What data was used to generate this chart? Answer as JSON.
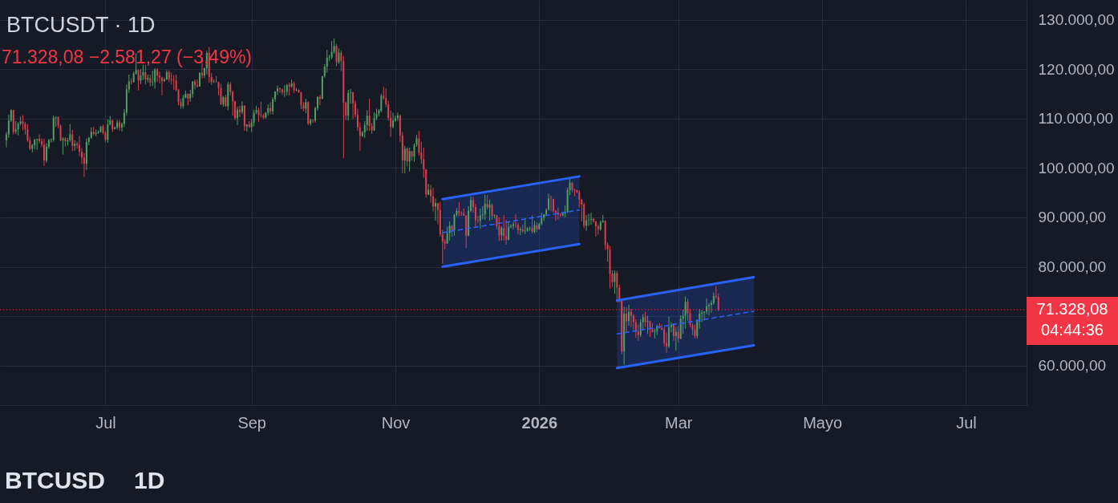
{
  "chart_data": {
    "type": "candlestick",
    "title": "BTCUSDT · 1D",
    "subtitle": "71.328,08 −2.581,27 (−3,49%)",
    "x": [
      "2025-05-20",
      "2025-05-21",
      "2025-05-22",
      "2025-05-23",
      "2025-05-24",
      "2025-05-25",
      "2025-05-26",
      "2025-05-27",
      "2025-05-28",
      "2025-05-29",
      "2025-05-30",
      "2025-05-31",
      "2025-06-01",
      "2025-06-02",
      "2025-06-03",
      "2025-06-04",
      "2025-06-05",
      "2025-06-06",
      "2025-06-07",
      "2025-06-08",
      "2025-06-09",
      "2025-06-10",
      "2025-06-11",
      "2025-06-12",
      "2025-06-13",
      "2025-06-14",
      "2025-06-15",
      "2025-06-16",
      "2025-06-17",
      "2025-06-18",
      "2025-06-19",
      "2025-06-20",
      "2025-06-21",
      "2025-06-22",
      "2025-06-23",
      "2025-06-24",
      "2025-06-25",
      "2025-06-26",
      "2025-06-27",
      "2025-06-28",
      "2025-06-29",
      "2025-06-30",
      "2025-07-01",
      "2025-07-02",
      "2025-07-03",
      "2025-07-04",
      "2025-07-05",
      "2025-07-06",
      "2025-07-07",
      "2025-07-08",
      "2025-07-09",
      "2025-07-10",
      "2025-07-11",
      "2025-07-12",
      "2025-07-13",
      "2025-07-14",
      "2025-07-15",
      "2025-07-16",
      "2025-07-17",
      "2025-07-18",
      "2025-07-19",
      "2025-07-20",
      "2025-07-21",
      "2025-07-22",
      "2025-07-23",
      "2025-07-24",
      "2025-07-25",
      "2025-07-26",
      "2025-07-27",
      "2025-07-28",
      "2025-07-29",
      "2025-07-30",
      "2025-07-31",
      "2025-08-01",
      "2025-08-02",
      "2025-08-03",
      "2025-08-04",
      "2025-08-05",
      "2025-08-06",
      "2025-08-07",
      "2025-08-08",
      "2025-08-09",
      "2025-08-10",
      "2025-08-11",
      "2025-08-12",
      "2025-08-13",
      "2025-08-14",
      "2025-08-15",
      "2025-08-16",
      "2025-08-17",
      "2025-08-18",
      "2025-08-19",
      "2025-08-20",
      "2025-08-21",
      "2025-08-22",
      "2025-08-23",
      "2025-08-24",
      "2025-08-25",
      "2025-08-26",
      "2025-08-27",
      "2025-08-28",
      "2025-08-29",
      "2025-08-30",
      "2025-08-31",
      "2025-09-01",
      "2025-09-02",
      "2025-09-03",
      "2025-09-04",
      "2025-09-05",
      "2025-09-06",
      "2025-09-07",
      "2025-09-08",
      "2025-09-09",
      "2025-09-10",
      "2025-09-11",
      "2025-09-12",
      "2025-09-13",
      "2025-09-14",
      "2025-09-15",
      "2025-09-16",
      "2025-09-17",
      "2025-09-18",
      "2025-09-19",
      "2025-09-20",
      "2025-09-21",
      "2025-09-22",
      "2025-09-23",
      "2025-09-24",
      "2025-09-25",
      "2025-09-26",
      "2025-09-27",
      "2025-09-28",
      "2025-09-29",
      "2025-09-30",
      "2025-10-01",
      "2025-10-02",
      "2025-10-03",
      "2025-10-04",
      "2025-10-05",
      "2025-10-06",
      "2025-10-07",
      "2025-10-08",
      "2025-10-09",
      "2025-10-10",
      "2025-10-11",
      "2025-10-12",
      "2025-10-13",
      "2025-10-14",
      "2025-10-15",
      "2025-10-16",
      "2025-10-17",
      "2025-10-18",
      "2025-10-19",
      "2025-10-20",
      "2025-10-21",
      "2025-10-22",
      "2025-10-23",
      "2025-10-24",
      "2025-10-25",
      "2025-10-26",
      "2025-10-27",
      "2025-10-28",
      "2025-10-29",
      "2025-10-30",
      "2025-10-31",
      "2025-11-01",
      "2025-11-02",
      "2025-11-03",
      "2025-11-04",
      "2025-11-05",
      "2025-11-06",
      "2025-11-07",
      "2025-11-08",
      "2025-11-09",
      "2025-11-10",
      "2025-11-11",
      "2025-11-12",
      "2025-11-13",
      "2025-11-14",
      "2025-11-15",
      "2025-11-16",
      "2025-11-17",
      "2025-11-18",
      "2025-11-19",
      "2025-11-20",
      "2025-11-21",
      "2025-11-22",
      "2025-11-23",
      "2025-11-24",
      "2025-11-25",
      "2025-11-26",
      "2025-11-27",
      "2025-11-28",
      "2025-11-29",
      "2025-11-30",
      "2025-12-01",
      "2025-12-02",
      "2025-12-03",
      "2025-12-04",
      "2025-12-05",
      "2025-12-06",
      "2025-12-07",
      "2025-12-08",
      "2025-12-09",
      "2025-12-10",
      "2025-12-11",
      "2025-12-12",
      "2025-12-13",
      "2025-12-14",
      "2025-12-15",
      "2025-12-16",
      "2025-12-17",
      "2025-12-18",
      "2025-12-19",
      "2025-12-20",
      "2025-12-21",
      "2025-12-22",
      "2025-12-23",
      "2025-12-24",
      "2025-12-25",
      "2025-12-26",
      "2025-12-27",
      "2025-12-28",
      "2025-12-29",
      "2025-12-30",
      "2025-12-31",
      "2026-01-01",
      "2026-01-02",
      "2026-01-03",
      "2026-01-04",
      "2026-01-05",
      "2026-01-06",
      "2026-01-07",
      "2026-01-08",
      "2026-01-09",
      "2026-01-10",
      "2026-01-11",
      "2026-01-12",
      "2026-01-13",
      "2026-01-14",
      "2026-01-15",
      "2026-01-16",
      "2026-01-17",
      "2026-01-18",
      "2026-01-19",
      "2026-01-20",
      "2026-01-21",
      "2026-01-22",
      "2026-01-23",
      "2026-01-24",
      "2026-01-25",
      "2026-01-26",
      "2026-01-27",
      "2026-01-28",
      "2026-01-29",
      "2026-01-30",
      "2026-01-31",
      "2026-02-01",
      "2026-02-02",
      "2026-02-03",
      "2026-02-04",
      "2026-02-05",
      "2026-02-06",
      "2026-02-07",
      "2026-02-08",
      "2026-02-09",
      "2026-02-10",
      "2026-02-11",
      "2026-02-12",
      "2026-02-13",
      "2026-02-14",
      "2026-02-15",
      "2026-02-16",
      "2026-02-17",
      "2026-02-18",
      "2026-02-19",
      "2026-02-20",
      "2026-02-21",
      "2026-02-22",
      "2026-02-23",
      "2026-02-24",
      "2026-02-25",
      "2026-02-26",
      "2026-02-27",
      "2026-02-28",
      "2026-03-01",
      "2026-03-02",
      "2026-03-03",
      "2026-03-04",
      "2026-03-05",
      "2026-03-06",
      "2026-03-07",
      "2026-03-08",
      "2026-03-09",
      "2026-03-10",
      "2026-03-11",
      "2026-03-12",
      "2026-03-13",
      "2026-03-14",
      "2026-03-15",
      "2026-03-16",
      "2026-03-17",
      "2026-03-18"
    ],
    "ohlc": [
      [
        105600,
        107300,
        104200,
        106800
      ],
      [
        106800,
        110800,
        106100,
        109600
      ],
      [
        109600,
        111900,
        109300,
        111700
      ],
      [
        111700,
        111800,
        106800,
        107300
      ],
      [
        107300,
        109500,
        106900,
        107800
      ],
      [
        107800,
        109300,
        106600,
        109000
      ],
      [
        109000,
        110400,
        108600,
        109400
      ],
      [
        109400,
        110700,
        107600,
        108900
      ],
      [
        108900,
        109300,
        106800,
        107800
      ],
      [
        107800,
        108900,
        105300,
        105600
      ],
      [
        105600,
        106300,
        103600,
        103900
      ],
      [
        103900,
        104900,
        103100,
        104600
      ],
      [
        104600,
        105900,
        103800,
        105700
      ],
      [
        105700,
        105900,
        103700,
        105900
      ],
      [
        105900,
        106800,
        105000,
        105400
      ],
      [
        105400,
        106000,
        104200,
        104700
      ],
      [
        104700,
        105900,
        100400,
        101500
      ],
      [
        101500,
        105000,
        101100,
        104300
      ],
      [
        104300,
        105900,
        103900,
        105600
      ],
      [
        105600,
        106000,
        105100,
        105700
      ],
      [
        105700,
        110600,
        105300,
        110200
      ],
      [
        110200,
        110400,
        108300,
        110300
      ],
      [
        110300,
        110400,
        108000,
        108600
      ],
      [
        108600,
        108800,
        105400,
        105600
      ],
      [
        105600,
        106200,
        102700,
        106000
      ],
      [
        106000,
        106200,
        104300,
        105400
      ],
      [
        105400,
        106100,
        104500,
        105600
      ],
      [
        105600,
        108900,
        105300,
        106800
      ],
      [
        106800,
        107700,
        103400,
        104500
      ],
      [
        104500,
        105600,
        103500,
        104900
      ],
      [
        104900,
        105300,
        103900,
        104600
      ],
      [
        104600,
        106500,
        102400,
        103300
      ],
      [
        103300,
        104000,
        100800,
        102100
      ],
      [
        102100,
        103000,
        98200,
        100900
      ],
      [
        100900,
        106000,
        99600,
        105300
      ],
      [
        105300,
        106300,
        104600,
        106100
      ],
      [
        106100,
        108200,
        105900,
        107300
      ],
      [
        107300,
        108300,
        106600,
        106900
      ],
      [
        106900,
        107800,
        106400,
        107100
      ],
      [
        107100,
        107600,
        106900,
        107300
      ],
      [
        107300,
        108500,
        107200,
        108400
      ],
      [
        108400,
        108800,
        106800,
        107100
      ],
      [
        107100,
        107500,
        105300,
        105700
      ],
      [
        105700,
        109800,
        105100,
        108800
      ],
      [
        108800,
        110500,
        108600,
        109600
      ],
      [
        109600,
        109800,
        107300,
        107900
      ],
      [
        107900,
        108400,
        107800,
        108200
      ],
      [
        108200,
        109700,
        107800,
        109200
      ],
      [
        109200,
        109700,
        107500,
        108200
      ],
      [
        108200,
        109200,
        107400,
        108900
      ],
      [
        108900,
        111900,
        108300,
        111200
      ],
      [
        111200,
        116900,
        110600,
        115900
      ],
      [
        115900,
        118900,
        115200,
        117500
      ],
      [
        117500,
        118200,
        116900,
        117400
      ],
      [
        117400,
        119500,
        117300,
        119100
      ],
      [
        119100,
        123200,
        118900,
        119800
      ],
      [
        119800,
        119900,
        115700,
        117700
      ],
      [
        117700,
        120000,
        117000,
        118700
      ],
      [
        118700,
        120900,
        117800,
        119400
      ],
      [
        119400,
        120900,
        116900,
        117900
      ],
      [
        117900,
        118900,
        117300,
        118200
      ],
      [
        118200,
        118900,
        116500,
        117300
      ],
      [
        117300,
        119700,
        116600,
        117400
      ],
      [
        117400,
        120200,
        116100,
        119900
      ],
      [
        119900,
        120200,
        117400,
        118700
      ],
      [
        118700,
        119500,
        117100,
        118300
      ],
      [
        118300,
        118500,
        114700,
        117600
      ],
      [
        117600,
        118300,
        117400,
        117900
      ],
      [
        117900,
        119800,
        117800,
        119400
      ],
      [
        119400,
        119800,
        117400,
        118000
      ],
      [
        118000,
        119300,
        116900,
        117800
      ],
      [
        117800,
        118800,
        115800,
        117700
      ],
      [
        117700,
        118900,
        115500,
        115800
      ],
      [
        115800,
        116000,
        112700,
        113300
      ],
      [
        113300,
        114000,
        112000,
        112500
      ],
      [
        112500,
        114800,
        112000,
        114200
      ],
      [
        114200,
        115700,
        114100,
        115000
      ],
      [
        115000,
        115100,
        112700,
        114100
      ],
      [
        114100,
        115800,
        113400,
        115000
      ],
      [
        115000,
        117600,
        114300,
        117500
      ],
      [
        117500,
        117900,
        115900,
        116700
      ],
      [
        116700,
        117900,
        116300,
        116500
      ],
      [
        116500,
        119300,
        116500,
        119300
      ],
      [
        119300,
        122300,
        118100,
        118700
      ],
      [
        118700,
        120300,
        118200,
        120200
      ],
      [
        120200,
        123700,
        118900,
        123300
      ],
      [
        123300,
        124500,
        117200,
        118400
      ],
      [
        118400,
        119200,
        116800,
        117400
      ],
      [
        117400,
        117900,
        117200,
        117500
      ],
      [
        117500,
        118600,
        117300,
        117400
      ],
      [
        117400,
        117500,
        114700,
        116200
      ],
      [
        116200,
        117000,
        112700,
        112900
      ],
      [
        112900,
        114600,
        112400,
        114300
      ],
      [
        114300,
        114800,
        112400,
        112500
      ],
      [
        112500,
        117400,
        111700,
        116900
      ],
      [
        116900,
        117400,
        114700,
        115400
      ],
      [
        115400,
        115700,
        110600,
        113500
      ],
      [
        113500,
        113600,
        109700,
        110100
      ],
      [
        110100,
        112400,
        108700,
        111800
      ],
      [
        111800,
        112600,
        110300,
        111300
      ],
      [
        111300,
        113500,
        110900,
        112600
      ],
      [
        112600,
        112700,
        107500,
        108400
      ],
      [
        108400,
        108900,
        107400,
        108800
      ],
      [
        108800,
        109500,
        108100,
        108300
      ],
      [
        108300,
        109900,
        107300,
        109200
      ],
      [
        109200,
        111800,
        108400,
        111200
      ],
      [
        111200,
        112600,
        110900,
        111700
      ],
      [
        111700,
        112200,
        109300,
        110700
      ],
      [
        110700,
        113400,
        110200,
        110600
      ],
      [
        110600,
        111000,
        109900,
        110200
      ],
      [
        110200,
        111300,
        110000,
        111200
      ],
      [
        111200,
        112900,
        110600,
        112100
      ],
      [
        112100,
        113300,
        110900,
        111500
      ],
      [
        111500,
        114300,
        110800,
        113900
      ],
      [
        113900,
        115500,
        113400,
        115500
      ],
      [
        115500,
        116700,
        114800,
        116100
      ],
      [
        116100,
        116300,
        115200,
        115900
      ],
      [
        115900,
        116100,
        114800,
        115300
      ],
      [
        115300,
        116800,
        114400,
        115400
      ],
      [
        115400,
        117000,
        114700,
        116800
      ],
      [
        116800,
        117300,
        114700,
        116500
      ],
      [
        116500,
        117900,
        116200,
        117100
      ],
      [
        117100,
        117500,
        115200,
        115700
      ],
      [
        115700,
        116200,
        115500,
        115800
      ],
      [
        115800,
        115900,
        115200,
        115300
      ],
      [
        115300,
        115400,
        111900,
        112700
      ],
      [
        112700,
        113300,
        111500,
        112000
      ],
      [
        112000,
        114000,
        111100,
        113300
      ],
      [
        113300,
        113500,
        108700,
        109000
      ],
      [
        109000,
        110000,
        108600,
        109700
      ],
      [
        109700,
        109800,
        109100,
        109600
      ],
      [
        109600,
        112400,
        109200,
        112100
      ],
      [
        112100,
        114500,
        111600,
        114400
      ],
      [
        114400,
        114800,
        112700,
        114000
      ],
      [
        114000,
        118600,
        113900,
        118600
      ],
      [
        118600,
        121000,
        118300,
        120500
      ],
      [
        120500,
        123900,
        119300,
        122300
      ],
      [
        122300,
        122900,
        121600,
        122400
      ],
      [
        122400,
        125700,
        122000,
        123500
      ],
      [
        123500,
        126200,
        123100,
        124700
      ],
      [
        124700,
        125100,
        120600,
        121400
      ],
      [
        121400,
        124200,
        121100,
        123300
      ],
      [
        123300,
        123800,
        119600,
        121700
      ],
      [
        121700,
        122600,
        102000,
        113200
      ],
      [
        113200,
        113400,
        109700,
        110600
      ],
      [
        110600,
        115800,
        109600,
        115200
      ],
      [
        115200,
        116000,
        113000,
        115300
      ],
      [
        115300,
        115400,
        109900,
        113100
      ],
      [
        113100,
        113600,
        110200,
        110800
      ],
      [
        110800,
        112000,
        107500,
        108200
      ],
      [
        108200,
        109200,
        103500,
        106500
      ],
      [
        106500,
        107500,
        106300,
        107200
      ],
      [
        107200,
        109500,
        106100,
        108700
      ],
      [
        108700,
        111700,
        107500,
        110600
      ],
      [
        110600,
        114000,
        107500,
        108500
      ],
      [
        108500,
        109100,
        106900,
        107600
      ],
      [
        107600,
        111300,
        107500,
        110100
      ],
      [
        110100,
        112000,
        109700,
        111000
      ],
      [
        111000,
        111900,
        110500,
        111600
      ],
      [
        111600,
        115000,
        111300,
        114600
      ],
      [
        114600,
        116400,
        113800,
        114100
      ],
      [
        114100,
        116100,
        112300,
        112900
      ],
      [
        112900,
        113600,
        109600,
        110100
      ],
      [
        110100,
        111600,
        106300,
        108300
      ],
      [
        108300,
        111200,
        108000,
        109600
      ],
      [
        109600,
        110600,
        109400,
        110100
      ],
      [
        110100,
        111200,
        109500,
        110600
      ],
      [
        110600,
        110800,
        105300,
        106600
      ],
      [
        106600,
        107300,
        98900,
        101500
      ],
      [
        101500,
        104500,
        98900,
        103900
      ],
      [
        103900,
        104200,
        100300,
        101300
      ],
      [
        101300,
        104100,
        99300,
        103400
      ],
      [
        103400,
        103400,
        101500,
        102300
      ],
      [
        102300,
        105000,
        101300,
        104700
      ],
      [
        104700,
        106700,
        104300,
        106000
      ],
      [
        106000,
        107500,
        102500,
        103100
      ],
      [
        103100,
        105300,
        100800,
        101700
      ],
      [
        101700,
        104100,
        98000,
        99700
      ],
      [
        99700,
        99800,
        94000,
        94600
      ],
      [
        94600,
        96800,
        94600,
        95600
      ],
      [
        95600,
        96600,
        93000,
        94300
      ],
      [
        94300,
        96000,
        91200,
        92200
      ],
      [
        92200,
        93800,
        89300,
        92900
      ],
      [
        92900,
        92900,
        88600,
        91500
      ],
      [
        91500,
        93200,
        86100,
        86600
      ],
      [
        86600,
        87500,
        80600,
        85100
      ],
      [
        85100,
        85600,
        83500,
        84700
      ],
      [
        84700,
        88100,
        84700,
        86800
      ],
      [
        86800,
        89200,
        85300,
        88300
      ],
      [
        88300,
        88500,
        86100,
        87400
      ],
      [
        87400,
        90700,
        86300,
        90500
      ],
      [
        90500,
        91900,
        90100,
        91300
      ],
      [
        91300,
        93100,
        90200,
        90900
      ],
      [
        90900,
        91200,
        90300,
        90800
      ],
      [
        90800,
        91800,
        90300,
        90400
      ],
      [
        90400,
        90400,
        83800,
        86300
      ],
      [
        86300,
        92300,
        86200,
        91300
      ],
      [
        91300,
        94200,
        91100,
        93500
      ],
      [
        93500,
        94100,
        91000,
        92100
      ],
      [
        92100,
        92700,
        88100,
        89400
      ],
      [
        89400,
        90300,
        88900,
        89300
      ],
      [
        89300,
        91800,
        87700,
        90400
      ],
      [
        90400,
        92300,
        89600,
        90600
      ],
      [
        90600,
        94600,
        89500,
        92700
      ],
      [
        92700,
        94500,
        91600,
        92000
      ],
      [
        92000,
        93600,
        89300,
        92500
      ],
      [
        92500,
        92800,
        89500,
        90300
      ],
      [
        90300,
        90600,
        89800,
        90400
      ],
      [
        90400,
        90500,
        87600,
        88200
      ],
      [
        88200,
        90000,
        85200,
        86400
      ],
      [
        86400,
        88200,
        85300,
        87800
      ],
      [
        87800,
        90400,
        85300,
        86200
      ],
      [
        86200,
        89500,
        84500,
        85500
      ],
      [
        85500,
        89000,
        85300,
        88100
      ],
      [
        88100,
        88600,
        87800,
        88300
      ],
      [
        88300,
        89100,
        87600,
        88600
      ],
      [
        88600,
        90600,
        87900,
        88500
      ],
      [
        88500,
        88900,
        86600,
        87400
      ],
      [
        87400,
        88000,
        86400,
        87600
      ],
      [
        87600,
        88500,
        86900,
        87200
      ],
      [
        87200,
        89500,
        86600,
        87300
      ],
      [
        87300,
        88000,
        87100,
        87800
      ],
      [
        87800,
        88100,
        87300,
        87900
      ],
      [
        87900,
        90400,
        86700,
        87100
      ],
      [
        87100,
        89300,
        86800,
        88400
      ],
      [
        88400,
        89000,
        87000,
        87600
      ],
      [
        87600,
        88900,
        87600,
        88700
      ],
      [
        88700,
        90900,
        88400,
        89900
      ],
      [
        89900,
        90700,
        89300,
        90600
      ],
      [
        90600,
        91800,
        90500,
        91500
      ],
      [
        91500,
        94800,
        91500,
        93800
      ],
      [
        93800,
        94400,
        91300,
        93700
      ],
      [
        93700,
        93800,
        90900,
        91300
      ],
      [
        91300,
        91500,
        89300,
        91000
      ],
      [
        91000,
        92000,
        89600,
        90600
      ],
      [
        90600,
        90800,
        90100,
        90400
      ],
      [
        90400,
        91100,
        90200,
        90800
      ],
      [
        90800,
        92400,
        90000,
        91100
      ],
      [
        91100,
        96000,
        90900,
        95500
      ],
      [
        95500,
        97900,
        94500,
        97000
      ],
      [
        97000,
        97200,
        95100,
        95600
      ],
      [
        95600,
        95800,
        94300,
        95500
      ],
      [
        95500,
        95600,
        94900,
        95100
      ],
      [
        95100,
        95500,
        92000,
        93600
      ],
      [
        93600,
        93800,
        89200,
        92600
      ],
      [
        92600,
        93000,
        87800,
        88300
      ],
      [
        88300,
        90500,
        87300,
        89400
      ],
      [
        89400,
        90700,
        88300,
        89500
      ],
      [
        89500,
        90900,
        88500,
        89700
      ],
      [
        89700,
        89900,
        88900,
        89200
      ],
      [
        89200,
        89300,
        86100,
        88200
      ],
      [
        88200,
        88600,
        86500,
        87600
      ],
      [
        87600,
        89400,
        87300,
        89000
      ],
      [
        89000,
        90500,
        88900,
        89300
      ],
      [
        89300,
        89400,
        83400,
        84500
      ],
      [
        84500,
        84900,
        81000,
        83500
      ],
      [
        83500,
        84200,
        75600,
        78600
      ],
      [
        78600,
        79300,
        75900,
        76900
      ],
      [
        76900,
        79300,
        74500,
        78700
      ],
      [
        78700,
        79200,
        72800,
        75800
      ],
      [
        75800,
        76400,
        72800,
        73100
      ],
      [
        73100,
        73500,
        62300,
        62900
      ],
      [
        62900,
        71900,
        60200,
        70500
      ],
      [
        70500,
        71800,
        66700,
        69000
      ],
      [
        69000,
        72300,
        68000,
        70900
      ],
      [
        70900,
        71500,
        67800,
        70100
      ],
      [
        70100,
        70400,
        67200,
        68800
      ],
      [
        68800,
        69400,
        65600,
        66900
      ],
      [
        66900,
        68300,
        65000,
        66200
      ],
      [
        66200,
        69400,
        65800,
        68800
      ],
      [
        68800,
        70400,
        67200,
        69800
      ],
      [
        69800,
        70900,
        67800,
        68800
      ],
      [
        68800,
        70100,
        66400,
        69000
      ],
      [
        69000,
        69100,
        65800,
        67500
      ],
      [
        67500,
        68600,
        66700,
        66800
      ],
      [
        66800,
        67500,
        65500,
        67000
      ],
      [
        67000,
        68300,
        66200,
        68000
      ],
      [
        68000,
        68600,
        67500,
        67600
      ],
      [
        67600,
        68300,
        67200,
        67300
      ],
      [
        67300,
        67800,
        63900,
        64600
      ],
      [
        64600,
        66700,
        62600,
        63900
      ],
      [
        63900,
        69900,
        63600,
        67800
      ],
      [
        67800,
        68800,
        66700,
        68200
      ],
      [
        68200,
        68600,
        65000,
        66000
      ],
      [
        66000,
        67800,
        63100,
        66800
      ],
      [
        66800,
        68000,
        64700,
        65500
      ],
      [
        65500,
        70200,
        65300,
        69500
      ],
      [
        69500,
        71300,
        66400,
        70100
      ],
      [
        70100,
        74000,
        67500,
        72900
      ],
      [
        72900,
        73500,
        69100,
        70600
      ],
      [
        70600,
        71500,
        67800,
        68200
      ],
      [
        68200,
        68600,
        66200,
        67300
      ],
      [
        67300,
        68300,
        65500,
        66000
      ],
      [
        66000,
        69400,
        65500,
        68900
      ],
      [
        68900,
        71500,
        67500,
        70500
      ],
      [
        70500,
        71200,
        68800,
        70700
      ],
      [
        70700,
        71000,
        69100,
        70900
      ],
      [
        70900,
        73600,
        70400,
        72000
      ],
      [
        72000,
        72700,
        70200,
        72300
      ],
      [
        72300,
        73200,
        70700,
        72700
      ],
      [
        72700,
        74800,
        72300,
        74100
      ],
      [
        74100,
        76100,
        73500,
        73900
      ],
      [
        73900,
        74600,
        71000,
        71328.08
      ]
    ],
    "colors": [
      "#4f9f62",
      "#4f9f62",
      "#4f9f62",
      "#d8404e",
      "#4f9f62",
      "#4f9f62",
      "#4f9f62",
      "#d8404e",
      "#d8404e",
      "#d8404e",
      "#d8404e",
      "#4f9f62",
      "#4f9f62",
      "#4f9f62",
      "#d8404e",
      "#d8404e",
      "#d8404e",
      "#4f9f62",
      "#4f9f62",
      "#4f9f62",
      "#4f9f62",
      "#4f9f62",
      "#d8404e",
      "#d8404e",
      "#4f9f62",
      "#d8404e",
      "#4f9f62",
      "#4f9f62",
      "#d8404e",
      "#4f9f62",
      "#d8404e",
      "#d8404e",
      "#d8404e",
      "#d8404e",
      "#4f9f62",
      "#4f9f62",
      "#4f9f62",
      "#d8404e",
      "#4f9f62",
      "#4f9f62",
      "#4f9f62",
      "#d8404e",
      "#d8404e",
      "#4f9f62",
      "#4f9f62",
      "#d8404e",
      "#4f9f62",
      "#4f9f62",
      "#d8404e",
      "#4f9f62",
      "#4f9f62",
      "#4f9f62",
      "#4f9f62",
      "#d8404e",
      "#4f9f62",
      "#4f9f62",
      "#d8404e",
      "#4f9f62",
      "#4f9f62",
      "#d8404e",
      "#4f9f62",
      "#d8404e",
      "#4f9f62",
      "#4f9f62",
      "#d8404e",
      "#d8404e",
      "#d8404e",
      "#4f9f62",
      "#4f9f62",
      "#d8404e",
      "#d8404e",
      "#d8404e",
      "#d8404e",
      "#d8404e",
      "#d8404e",
      "#4f9f62",
      "#4f9f62",
      "#d8404e",
      "#4f9f62",
      "#4f9f62",
      "#d8404e",
      "#d8404e",
      "#4f9f62",
      "#d8404e",
      "#4f9f62",
      "#4f9f62",
      "#d8404e",
      "#d8404e",
      "#4f9f62",
      "#d8404e",
      "#d8404e",
      "#d8404e",
      "#4f9f62",
      "#d8404e",
      "#4f9f62",
      "#d8404e",
      "#d8404e",
      "#d8404e",
      "#4f9f62",
      "#d8404e",
      "#4f9f62",
      "#d8404e",
      "#4f9f62",
      "#d8404e",
      "#4f9f62",
      "#4f9f62",
      "#4f9f62",
      "#d8404e",
      "#d8404e",
      "#d8404e",
      "#4f9f62",
      "#4f9f62",
      "#d8404e",
      "#4f9f62",
      "#4f9f62",
      "#4f9f62",
      "#d8404e",
      "#d8404e",
      "#4f9f62",
      "#4f9f62",
      "#d8404e",
      "#4f9f62",
      "#d8404e",
      "#4f9f62",
      "#d8404e",
      "#d8404e",
      "#d8404e",
      "#4f9f62",
      "#d8404e",
      "#4f9f62",
      "#d8404e",
      "#4f9f62",
      "#4f9f62",
      "#d8404e",
      "#4f9f62",
      "#4f9f62",
      "#4f9f62",
      "#4f9f62",
      "#4f9f62",
      "#4f9f62",
      "#d8404e",
      "#4f9f62",
      "#d8404e",
      "#d8404e",
      "#d8404e",
      "#4f9f62",
      "#4f9f62",
      "#d8404e",
      "#d8404e",
      "#d8404e",
      "#d8404e",
      "#4f9f62",
      "#4f9f62",
      "#4f9f62",
      "#d8404e",
      "#d8404e",
      "#4f9f62",
      "#4f9f62",
      "#4f9f62",
      "#4f9f62",
      "#d8404e",
      "#d8404e",
      "#d8404e",
      "#d8404e",
      "#4f9f62",
      "#4f9f62",
      "#4f9f62",
      "#d8404e",
      "#d8404e",
      "#4f9f62",
      "#d8404e",
      "#4f9f62",
      "#d8404e",
      "#4f9f62",
      "#4f9f62",
      "#d8404e",
      "#d8404e",
      "#d8404e",
      "#d8404e",
      "#4f9f62",
      "#d8404e",
      "#d8404e",
      "#4f9f62",
      "#d8404e",
      "#d8404e",
      "#d8404e",
      "#d8404e",
      "#4f9f62",
      "#4f9f62",
      "#d8404e",
      "#4f9f62",
      "#4f9f62",
      "#d8404e",
      "#d8404e",
      "#d8404e",
      "#d8404e",
      "#4f9f62",
      "#4f9f62",
      "#d8404e",
      "#d8404e",
      "#d8404e",
      "#4f9f62",
      "#4f9f62",
      "#4f9f62",
      "#d8404e",
      "#4f9f62",
      "#d8404e",
      "#4f9f62",
      "#d8404e",
      "#d8404e",
      "#4f9f62",
      "#d8404e",
      "#d8404e",
      "#4f9f62",
      "#4f9f62",
      "#4f9f62",
      "#d8404e",
      "#d8404e",
      "#4f9f62",
      "#d8404e",
      "#4f9f62",
      "#4f9f62",
      "#4f9f62",
      "#d8404e",
      "#4f9f62",
      "#d8404e",
      "#4f9f62",
      "#4f9f62",
      "#4f9f62",
      "#4f9f62",
      "#4f9f62",
      "#d8404e",
      "#d8404e",
      "#d8404e",
      "#d8404e",
      "#d8404e",
      "#4f9f62",
      "#4f9f62",
      "#4f9f62",
      "#4f9f62",
      "#d8404e",
      "#d8404e",
      "#d8404e",
      "#d8404e",
      "#d8404e",
      "#d8404e",
      "#4f9f62",
      "#4f9f62",
      "#4f9f62",
      "#d8404e",
      "#d8404e",
      "#d8404e",
      "#4f9f62",
      "#4f9f62",
      "#d8404e",
      "#d8404e",
      "#d8404e",
      "#d8404e",
      "#4f9f62",
      "#d8404e",
      "#d8404e",
      "#d8404e",
      "#4f9f62",
      "#d8404e",
      "#4f9f62",
      "#d8404e",
      "#d8404e",
      "#d8404e",
      "#d8404e",
      "#4f9f62",
      "#4f9f62",
      "#d8404e",
      "#4f9f62",
      "#d8404e",
      "#d8404e",
      "#4f9f62",
      "#4f9f62",
      "#d8404e",
      "#d8404e",
      "#d8404e",
      "#d8404e",
      "#4f9f62",
      "#4f9f62",
      "#d8404e",
      "#4f9f62",
      "#d8404e",
      "#4f9f62",
      "#4f9f62",
      "#4f9f62",
      "#d8404e",
      "#d8404e",
      "#d8404e",
      "#d8404e",
      "#4f9f62",
      "#4f9f62",
      "#4f9f62",
      "#4f9f62",
      "#4f9f62",
      "#4f9f62",
      "#4f9f62",
      "#4f9f62",
      "#d8404e",
      "#d8404e"
    ],
    "series": [
      {
        "type": "line",
        "x": [
          "2025-11-21",
          "2026-01-18"
        ],
        "values": [
          93700,
          98300
        ],
        "color": "#2962ff"
      },
      {
        "type": "line",
        "x": [
          "2025-11-21",
          "2026-01-18"
        ],
        "values": [
          80000,
          84600
        ],
        "color": "#2962ff"
      },
      {
        "type": "line",
        "x": [
          "2025-11-21",
          "2026-01-18"
        ],
        "values": [
          86900,
          91500
        ],
        "lower": [
          80000,
          84600
        ],
        "upper": [
          93700,
          98300
        ],
        "color": "#2962ff",
        "line_style": "dashed"
      },
      {
        "type": "line",
        "x": [
          "2026-02-03",
          "2026-04-02"
        ],
        "values": [
          73200,
          77900
        ],
        "color": "#2962ff"
      },
      {
        "type": "line",
        "x": [
          "2026-02-03",
          "2026-04-02"
        ],
        "values": [
          59500,
          64100
        ],
        "color": "#2962ff"
      },
      {
        "type": "line",
        "x": [
          "2026-02-03",
          "2026-04-02"
        ],
        "values": [
          66400,
          71000
        ],
        "lower": [
          59500,
          64100
        ],
        "upper": [
          73200,
          77900
        ],
        "color": "#2962ff",
        "line_style": "dashed"
      }
    ],
    "xlim": [
      "2025-05-19",
      "2026-07-25"
    ],
    "ylim": [
      52000,
      134000
    ],
    "xticks": [
      {
        "value": "2025-07-01",
        "label": "Jul"
      },
      {
        "value": "2025-09-01",
        "label": "Sep"
      },
      {
        "value": "2025-11-01",
        "label": "Nov"
      },
      {
        "value": "2026-01-01",
        "label": "2026"
      },
      {
        "value": "2026-03-01",
        "label": "Mar"
      },
      {
        "value": "2026-05-01",
        "label": "Mayo"
      },
      {
        "value": "2026-07-01",
        "label": "Jul"
      }
    ],
    "yticks": [
      {
        "value": 60000,
        "label": "60.000,00"
      },
      {
        "value": 70000,
        "label": null
      },
      {
        "value": 80000,
        "label": "80.000,00"
      },
      {
        "value": 90000,
        "label": "90.000,00"
      },
      {
        "value": 100000,
        "label": "100.000,00"
      },
      {
        "value": 110000,
        "label": "110.000,00"
      },
      {
        "value": 120000,
        "label": "120.000,00"
      },
      {
        "value": 130000,
        "label": "130.000,00"
      }
    ],
    "ref_lines": [
      {
        "axis": "y",
        "value": 71328.08,
        "label": "71.328,08",
        "color": "#f23645",
        "line_style": "dotted"
      }
    ],
    "annotations": [
      "04:44:36",
      "BTCUSD",
      "1D"
    ],
    "grid": true
  }
}
